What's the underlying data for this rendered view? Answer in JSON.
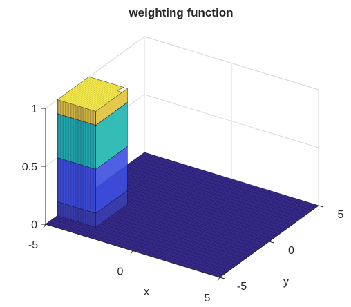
{
  "chart_data": {
    "type": "surface",
    "title": "weighting function",
    "xlabel": "x",
    "ylabel": "y",
    "zlabel": "",
    "xlim": [
      -5,
      5
    ],
    "ylim": [
      -5,
      5
    ],
    "zlim": [
      0,
      1
    ],
    "x_ticks": [
      "-5",
      "0",
      "5"
    ],
    "y_ticks": [
      "-5",
      "0",
      "5"
    ],
    "z_ticks": [
      "0",
      "0.5",
      "1"
    ],
    "grid": true,
    "colormap": "parula",
    "surface": {
      "shape": "rounded box of height 1 with a notch on top",
      "x_range_high": [
        -5,
        -2.8
      ],
      "y_range_high": [
        -3.8,
        -0.6
      ],
      "z_high": 1,
      "z_low": 0
    },
    "colors": {
      "low": "#352a87",
      "band1": "#3d4fe0",
      "band2": "#1fb6b0",
      "band3": "#e2c33a",
      "top": "#f2e84a",
      "grid": "#d9d9d9",
      "axis": "#262626"
    }
  }
}
